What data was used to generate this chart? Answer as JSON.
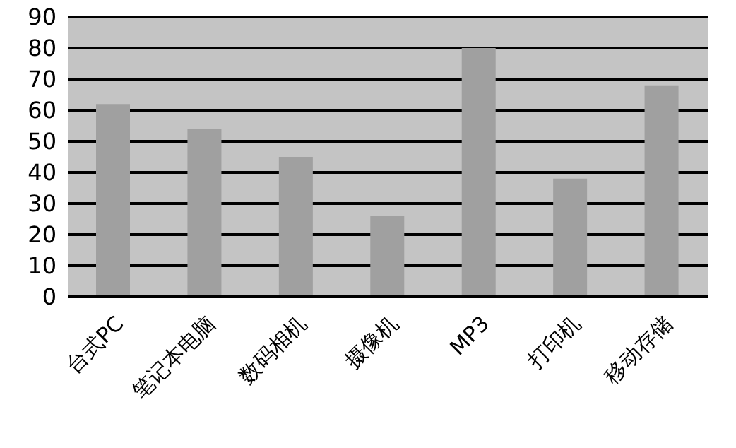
{
  "chart_data": {
    "type": "bar",
    "categories": [
      "台式PC",
      "笔记本电脑",
      "数码相机",
      "摄像机",
      "MP3",
      "打印机",
      "移动存储"
    ],
    "values": [
      62,
      54,
      45,
      26,
      80,
      38,
      68
    ],
    "color": "#a0a0a0",
    "ylim": [
      0,
      90
    ],
    "yticks": [
      0,
      10,
      20,
      30,
      40,
      50,
      60,
      70,
      80,
      90
    ],
    "grid": "y"
  }
}
